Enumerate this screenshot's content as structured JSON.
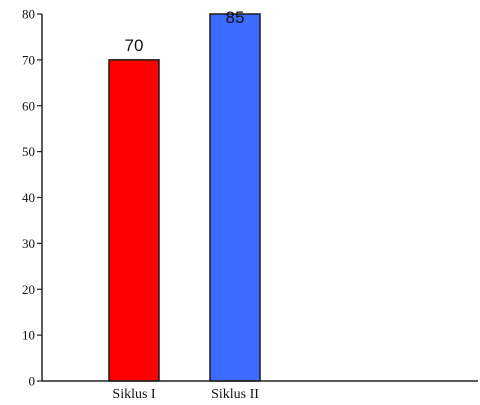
{
  "chart_data": {
    "type": "bar",
    "categories": [
      "Siklus I",
      "Siklus II"
    ],
    "values": [
      70,
      85
    ],
    "data_labels": [
      "70",
      "85"
    ],
    "colors": [
      "#ff0000",
      "#3d6bff"
    ],
    "ylim": [
      0,
      80
    ],
    "yticks": [
      0,
      10,
      20,
      30,
      40,
      50,
      60,
      70,
      80
    ],
    "title": "",
    "xlabel": "",
    "ylabel": "",
    "grid": false
  }
}
